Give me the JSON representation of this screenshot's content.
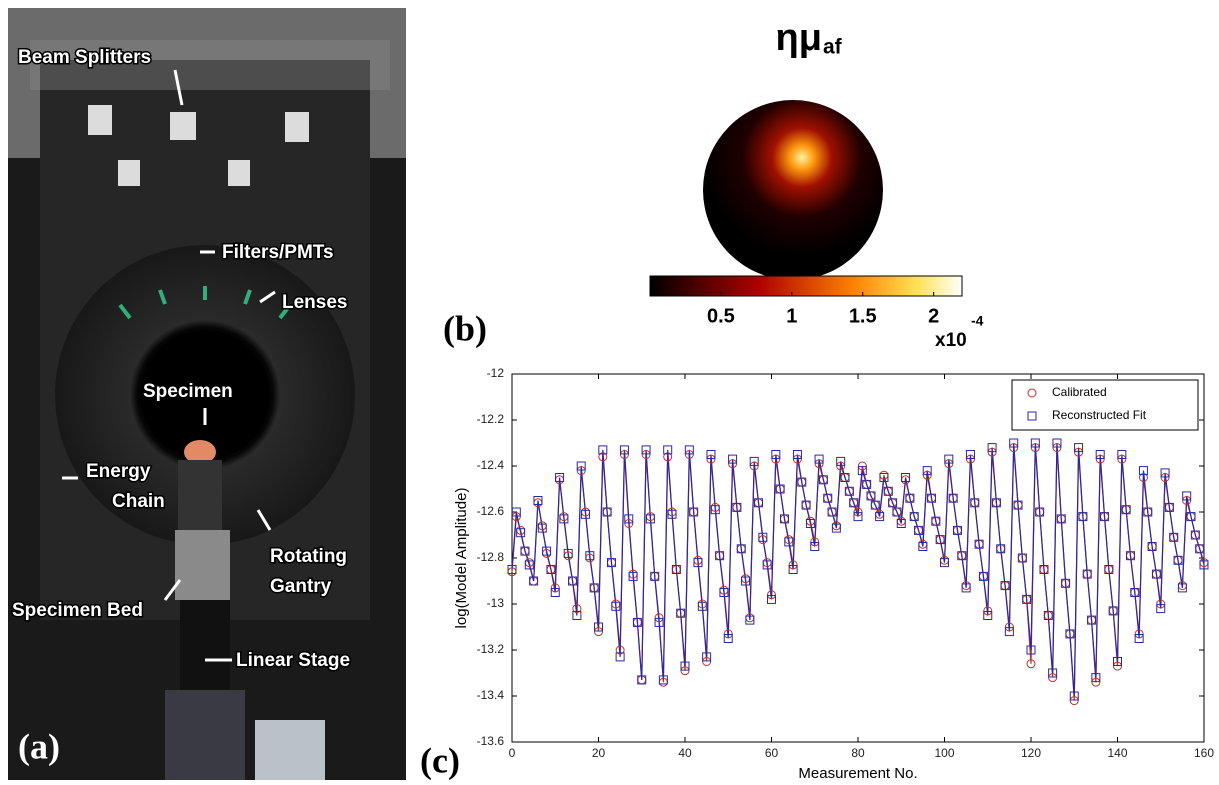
{
  "photo": {
    "panel_label": "(a)",
    "labels": [
      [
        "Beam Splitters"
      ],
      [
        "Filters/PMTs"
      ],
      [
        "Lenses"
      ],
      [
        "Specimen"
      ],
      [
        "Energy",
        "Chain"
      ],
      [
        "Rotating",
        "Gantry"
      ],
      [
        "Specimen Bed"
      ],
      [
        "Linear Stage"
      ]
    ]
  },
  "chart_data": [
    {
      "type": "heatmap",
      "panel_label": "(b)",
      "title": "ημ",
      "title_subscript": "af",
      "clim": [
        0,
        2.2
      ],
      "cticks": [
        0.5,
        1,
        1.5,
        2
      ],
      "colorbar_label": "x10",
      "colorbar_exponent": "-4"
    },
    {
      "type": "line",
      "panel_label": "(c)",
      "x_label": "Measurement No.",
      "y_label": "log(Model Amplitude)",
      "xlim": [
        0,
        160
      ],
      "xticks": [
        0,
        20,
        40,
        60,
        80,
        100,
        120,
        140,
        160
      ],
      "ylim": [
        -13.6,
        -12
      ],
      "yticks": [
        -12,
        -12.2,
        -12.4,
        -12.6,
        -12.8,
        -13,
        -13.2,
        -13.4,
        -13.6
      ],
      "grid": false,
      "legend": "upper right",
      "x": [
        0,
        1,
        2,
        3,
        4,
        5,
        6,
        7,
        8,
        9,
        10,
        11,
        12,
        13,
        14,
        15,
        16,
        17,
        18,
        19,
        20,
        21,
        22,
        23,
        24,
        25,
        26,
        27,
        28,
        29,
        30,
        31,
        32,
        33,
        34,
        35,
        36,
        37,
        38,
        39,
        40,
        41,
        42,
        43,
        44,
        45,
        46,
        47,
        48,
        49,
        50,
        51,
        52,
        53,
        54,
        55,
        56,
        57,
        58,
        59,
        60,
        61,
        62,
        63,
        64,
        65,
        66,
        67,
        68,
        69,
        70,
        71,
        72,
        73,
        74,
        75,
        76,
        77,
        78,
        79,
        80,
        81,
        82,
        83,
        84,
        85,
        86,
        87,
        88,
        89,
        90,
        91,
        92,
        93,
        94,
        95,
        96,
        97,
        98,
        99,
        100,
        101,
        102,
        103,
        104,
        105,
        106,
        107,
        108,
        109,
        110,
        111,
        112,
        113,
        114,
        115,
        116,
        117,
        118,
        119,
        120,
        121,
        122,
        123,
        124,
        125,
        126,
        127,
        128,
        129,
        130,
        131,
        132,
        133,
        134,
        135,
        136,
        137,
        138,
        139,
        140,
        141,
        142,
        143,
        144,
        145,
        146,
        147,
        148,
        149,
        150,
        151,
        152,
        153,
        154,
        155,
        156,
        157,
        158,
        159,
        160
      ],
      "series": [
        {
          "name": "Calibrated",
          "color": "#c0302a",
          "marker": "circle",
          "values": [
            -12.86,
            -12.62,
            -12.68,
            -12.77,
            -12.82,
            -12.9,
            -12.56,
            -12.66,
            -12.78,
            -12.85,
            -12.93,
            -12.46,
            -12.62,
            -12.79,
            -12.9,
            -13.02,
            -12.42,
            -12.6,
            -12.8,
            -12.93,
            -13.12,
            -12.36,
            -12.6,
            -12.82,
            -13.0,
            -13.2,
            -12.35,
            -12.65,
            -12.87,
            -13.08,
            -13.33,
            -12.35,
            -12.62,
            -12.88,
            -13.06,
            -13.34,
            -12.36,
            -12.6,
            -12.85,
            -13.04,
            -13.29,
            -12.35,
            -12.6,
            -12.81,
            -13.0,
            -13.25,
            -12.37,
            -12.58,
            -12.79,
            -12.94,
            -13.13,
            -12.39,
            -12.58,
            -12.76,
            -12.89,
            -13.06,
            -12.4,
            -12.56,
            -12.72,
            -12.82,
            -12.96,
            -12.37,
            -12.5,
            -12.63,
            -12.72,
            -12.83,
            -12.37,
            -12.47,
            -12.57,
            -12.64,
            -12.73,
            -12.39,
            -12.46,
            -12.54,
            -12.6,
            -12.66,
            -12.4,
            -12.45,
            -12.51,
            -12.56,
            -12.6,
            -12.4,
            -12.48,
            -12.53,
            -12.57,
            -12.61,
            -12.44,
            -12.51,
            -12.56,
            -12.6,
            -12.64,
            -12.46,
            -12.54,
            -12.62,
            -12.68,
            -12.74,
            -12.44,
            -12.54,
            -12.64,
            -12.72,
            -12.81,
            -12.39,
            -12.54,
            -12.68,
            -12.79,
            -12.92,
            -12.37,
            -12.56,
            -12.74,
            -12.88,
            -13.03,
            -12.34,
            -12.56,
            -12.76,
            -12.92,
            -13.1,
            -12.32,
            -12.57,
            -12.8,
            -12.98,
            -13.26,
            -12.32,
            -12.6,
            -12.85,
            -13.05,
            -13.32,
            -12.32,
            -12.63,
            -12.91,
            -13.13,
            -13.42,
            -12.34,
            -12.62,
            -12.87,
            -13.07,
            -13.34,
            -12.37,
            -12.62,
            -12.85,
            -13.03,
            -13.27,
            -12.37,
            -12.59,
            -12.79,
            -12.95,
            -13.13,
            -12.45,
            -12.6,
            -12.75,
            -12.87,
            -13.0,
            -12.45,
            -12.58,
            -12.71,
            -12.81,
            -12.92,
            -12.55,
            -12.62,
            -12.7,
            -12.76,
            -12.82
          ]
        },
        {
          "name": "Reconstructed Fit",
          "color": "#2a2aa0",
          "marker": "square",
          "values": [
            -12.85,
            -12.6,
            -12.69,
            -12.77,
            -12.83,
            -12.9,
            -12.55,
            -12.67,
            -12.77,
            -12.85,
            -12.95,
            -12.45,
            -12.63,
            -12.78,
            -12.9,
            -13.05,
            -12.4,
            -12.61,
            -12.79,
            -12.93,
            -13.1,
            -12.33,
            -12.6,
            -12.82,
            -13.01,
            -13.23,
            -12.33,
            -12.63,
            -12.88,
            -13.08,
            -13.33,
            -12.33,
            -12.63,
            -12.88,
            -13.08,
            -13.33,
            -12.33,
            -12.61,
            -12.85,
            -13.04,
            -13.27,
            -12.33,
            -12.6,
            -12.82,
            -13.01,
            -13.23,
            -12.35,
            -12.59,
            -12.79,
            -12.95,
            -13.15,
            -12.37,
            -12.58,
            -12.76,
            -12.9,
            -13.07,
            -12.38,
            -12.56,
            -12.71,
            -12.83,
            -12.98,
            -12.35,
            -12.5,
            -12.63,
            -12.73,
            -12.85,
            -12.35,
            -12.47,
            -12.57,
            -12.65,
            -12.75,
            -12.37,
            -12.46,
            -12.54,
            -12.6,
            -12.67,
            -12.38,
            -12.45,
            -12.51,
            -12.56,
            -12.62,
            -12.42,
            -12.48,
            -12.53,
            -12.57,
            -12.62,
            -12.45,
            -12.51,
            -12.56,
            -12.6,
            -12.65,
            -12.45,
            -12.54,
            -12.62,
            -12.68,
            -12.75,
            -12.42,
            -12.54,
            -12.64,
            -12.72,
            -12.82,
            -12.37,
            -12.54,
            -12.68,
            -12.79,
            -12.93,
            -12.35,
            -12.56,
            -12.74,
            -12.88,
            -13.05,
            -12.32,
            -12.56,
            -12.76,
            -12.92,
            -13.12,
            -12.3,
            -12.57,
            -12.8,
            -12.98,
            -13.2,
            -12.3,
            -12.6,
            -12.85,
            -13.05,
            -13.3,
            -12.3,
            -12.63,
            -12.91,
            -13.13,
            -13.4,
            -12.32,
            -12.62,
            -12.87,
            -13.07,
            -13.32,
            -12.35,
            -12.62,
            -12.85,
            -13.03,
            -13.25,
            -12.35,
            -12.59,
            -12.79,
            -12.95,
            -13.15,
            -12.42,
            -12.6,
            -12.75,
            -12.87,
            -13.02,
            -12.43,
            -12.58,
            -12.71,
            -12.81,
            -12.93,
            -12.53,
            -12.62,
            -12.7,
            -12.76,
            -12.83
          ]
        }
      ]
    }
  ]
}
